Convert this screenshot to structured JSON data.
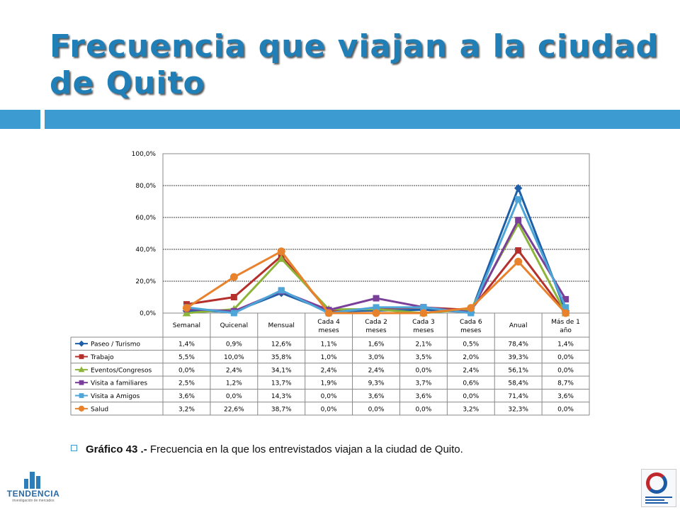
{
  "slide": {
    "title": "Frecuencia que viajan a la ciudad de Quito",
    "caption_bold": "Gráfico 43 .-",
    "caption_text": " Frecuencia en la que los entrevistados viajan a la ciudad de Quito.",
    "logo_left_text": "TENDENCIA",
    "logo_left_sub": "investigación de mercados",
    "logo_right_icon": "quito-turismo-logo"
  },
  "colors": {
    "title": "#1f7fb6",
    "accent_bar": "#3c9bd0"
  },
  "chart_data": {
    "type": "line",
    "title": "",
    "xlabel": "",
    "ylabel": "",
    "ylim": [
      0,
      100
    ],
    "yticks": [
      "0,0%",
      "20,0%",
      "40,0%",
      "60,0%",
      "80,0%",
      "100,0%"
    ],
    "grid": true,
    "legend": "data-table-below",
    "categories": [
      "Semanal",
      "Quicenal",
      "Mensual",
      "Cada 4 meses",
      "Cada 2 meses",
      "Cada 3 meses",
      "Cada 6 meses",
      "Anual",
      "Más de 1 año"
    ],
    "series": [
      {
        "name": "Paseo / Turismo",
        "color": "#1f5fa8",
        "marker": "diamond",
        "values": [
          1.4,
          0.9,
          12.6,
          1.1,
          1.6,
          2.1,
          0.5,
          78.4,
          1.4
        ],
        "labels": [
          "1,4%",
          "0,9%",
          "12,6%",
          "1,1%",
          "1,6%",
          "2,1%",
          "0,5%",
          "78,4%",
          "1,4%"
        ]
      },
      {
        "name": "Trabajo",
        "color": "#b5302c",
        "marker": "square",
        "values": [
          5.5,
          10.0,
          35.8,
          1.0,
          3.0,
          3.5,
          2.0,
          39.3,
          0.0
        ],
        "labels": [
          "5,5%",
          "10,0%",
          "35,8%",
          "1,0%",
          "3,0%",
          "3,5%",
          "2,0%",
          "39,3%",
          "0,0%"
        ]
      },
      {
        "name": "Eventos/Congresos",
        "color": "#8db43a",
        "marker": "triangle",
        "values": [
          0.0,
          2.4,
          34.1,
          2.4,
          2.4,
          0.0,
          2.4,
          56.1,
          0.0
        ],
        "labels": [
          "0,0%",
          "2,4%",
          "34,1%",
          "2,4%",
          "2,4%",
          "0,0%",
          "2,4%",
          "56,1%",
          "0,0%"
        ]
      },
      {
        "name": "Visita a familiares",
        "color": "#7a3f98",
        "marker": "square",
        "values": [
          2.5,
          1.2,
          13.7,
          1.9,
          9.3,
          3.7,
          0.6,
          58.4,
          8.7
        ],
        "labels": [
          "2,5%",
          "1,2%",
          "13,7%",
          "1,9%",
          "9,3%",
          "3,7%",
          "0,6%",
          "58,4%",
          "8,7%"
        ]
      },
      {
        "name": "Visita a Amigos",
        "color": "#4ea6d8",
        "marker": "square",
        "values": [
          3.6,
          0.0,
          14.3,
          0.0,
          3.6,
          3.6,
          0.0,
          71.4,
          3.6
        ],
        "labels": [
          "3,6%",
          "0,0%",
          "14,3%",
          "0,0%",
          "3,6%",
          "3,6%",
          "0,0%",
          "71,4%",
          "3,6%"
        ]
      },
      {
        "name": "Salud",
        "color": "#e8822c",
        "marker": "circle",
        "values": [
          3.2,
          22.6,
          38.7,
          0.0,
          0.0,
          0.0,
          3.2,
          32.3,
          0.0
        ],
        "labels": [
          "3,2%",
          "22,6%",
          "38,7%",
          "0,0%",
          "0,0%",
          "0,0%",
          "3,2%",
          "32,3%",
          "0,0%"
        ]
      }
    ]
  }
}
